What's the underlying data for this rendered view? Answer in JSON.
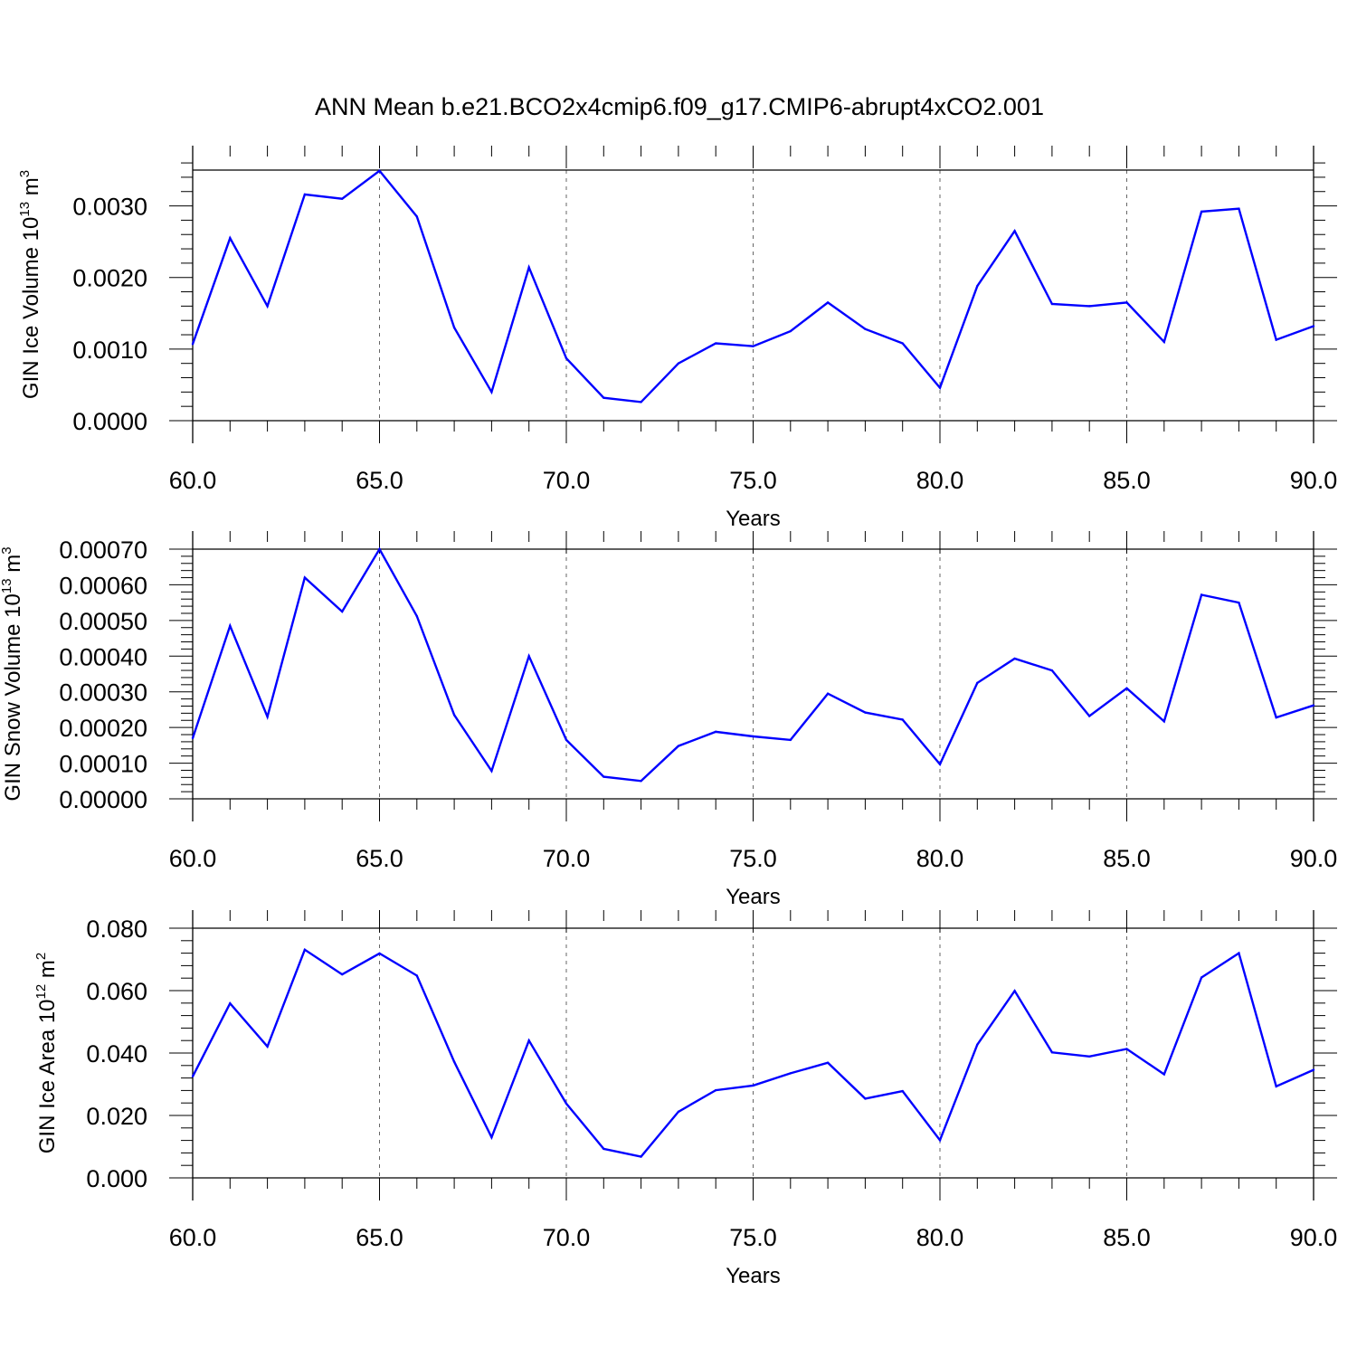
{
  "title": "ANN Mean b.e21.BCO2x4cmip6.f09_g17.CMIP6-abrupt4xCO2.001",
  "line_color": "#0000ff",
  "chart_data": [
    {
      "type": "line",
      "ylabel": {
        "text": "GIN Ice Volume 10",
        "sup": "13",
        "unit": " m",
        "unit_sup": "3"
      },
      "xlabel": "Years",
      "xlim": [
        60,
        90
      ],
      "ylim": [
        0,
        0.0035
      ],
      "grid": "vertical dashed at major x ticks",
      "xticks": [
        60,
        65,
        70,
        75,
        80,
        85,
        90
      ],
      "xtick_labels": [
        "60.0",
        "65.0",
        "70.0",
        "75.0",
        "80.0",
        "85.0",
        "90.0"
      ],
      "yticks": [
        0,
        0.001,
        0.002,
        0.003
      ],
      "ytick_labels": [
        "0.0000",
        "0.0010",
        "0.0020",
        "0.0030"
      ],
      "x": [
        60,
        61,
        62,
        63,
        64,
        65,
        66,
        67,
        68,
        69,
        70,
        71,
        72,
        73,
        74,
        75,
        76,
        77,
        78,
        79,
        80,
        81,
        82,
        83,
        84,
        85,
        86,
        87,
        88,
        89,
        90
      ],
      "series": [
        {
          "values": [
            0.00107,
            0.00255,
            0.0016,
            0.00316,
            0.0031,
            0.00349,
            0.00285,
            0.0013,
            0.0004,
            0.00214,
            0.00087,
            0.00032,
            0.00026,
            0.0008,
            0.00108,
            0.00104,
            0.00125,
            0.00165,
            0.00128,
            0.00108,
            0.00046,
            0.00188,
            0.00265,
            0.00163,
            0.0016,
            0.00165,
            0.0011,
            0.00292,
            0.00296,
            0.00113,
            0.00132
          ]
        }
      ]
    },
    {
      "type": "line",
      "ylabel": {
        "text": "GIN Snow Volume 10",
        "sup": "13",
        "unit": " m",
        "unit_sup": "3"
      },
      "xlabel": "Years",
      "xlim": [
        60,
        90
      ],
      "ylim": [
        0,
        0.0007
      ],
      "grid": "vertical dashed at major x ticks",
      "xticks": [
        60,
        65,
        70,
        75,
        80,
        85,
        90
      ],
      "xtick_labels": [
        "60.0",
        "65.0",
        "70.0",
        "75.0",
        "80.0",
        "85.0",
        "90.0"
      ],
      "yticks": [
        0,
        0.0001,
        0.0002,
        0.0003,
        0.0004,
        0.0005,
        0.0006,
        0.0007
      ],
      "ytick_labels": [
        "0.00000",
        "0.00010",
        "0.00020",
        "0.00030",
        "0.00040",
        "0.00050",
        "0.00060",
        "0.00070"
      ],
      "x": [
        60,
        61,
        62,
        63,
        64,
        65,
        66,
        67,
        68,
        69,
        70,
        71,
        72,
        73,
        74,
        75,
        76,
        77,
        78,
        79,
        80,
        81,
        82,
        83,
        84,
        85,
        86,
        87,
        88,
        89,
        90
      ],
      "series": [
        {
          "values": [
            0.00017,
            0.000485,
            0.00023,
            0.00062,
            0.000525,
            0.0007,
            0.000512,
            0.000235,
            7.8e-05,
            0.0004,
            0.000165,
            6.2e-05,
            5e-05,
            0.000148,
            0.000188,
            0.000175,
            0.000165,
            0.000295,
            0.000242,
            0.000222,
            9.7e-05,
            0.000325,
            0.000393,
            0.00036,
            0.000232,
            0.00031,
            0.000217,
            0.000572,
            0.00055,
            0.000228,
            0.000262
          ]
        }
      ]
    },
    {
      "type": "line",
      "ylabel": {
        "text": "GIN Ice Area 10",
        "sup": "12",
        "unit": " m",
        "unit_sup": "2"
      },
      "xlabel": "Years",
      "xlim": [
        60,
        90
      ],
      "ylim": [
        0,
        0.08
      ],
      "grid": "vertical dashed at major x ticks",
      "xticks": [
        60,
        65,
        70,
        75,
        80,
        85,
        90
      ],
      "xtick_labels": [
        "60.0",
        "65.0",
        "70.0",
        "75.0",
        "80.0",
        "85.0",
        "90.0"
      ],
      "yticks": [
        0,
        0.02,
        0.04,
        0.06,
        0.08
      ],
      "ytick_labels": [
        "0.000",
        "0.020",
        "0.040",
        "0.060",
        "0.080"
      ],
      "x": [
        60,
        61,
        62,
        63,
        64,
        65,
        66,
        67,
        68,
        69,
        70,
        71,
        72,
        73,
        74,
        75,
        76,
        77,
        78,
        79,
        80,
        81,
        82,
        83,
        84,
        85,
        86,
        87,
        88,
        89,
        90
      ],
      "series": [
        {
          "values": [
            0.0325,
            0.0559,
            0.0421,
            0.0731,
            0.0652,
            0.0719,
            0.0648,
            0.0372,
            0.013,
            0.044,
            0.0238,
            0.0093,
            0.0068,
            0.0212,
            0.0281,
            0.0296,
            0.0335,
            0.0369,
            0.0254,
            0.0278,
            0.0121,
            0.0427,
            0.0599,
            0.0402,
            0.0389,
            0.0413,
            0.0332,
            0.0642,
            0.072,
            0.0293,
            0.0346
          ]
        }
      ]
    }
  ]
}
